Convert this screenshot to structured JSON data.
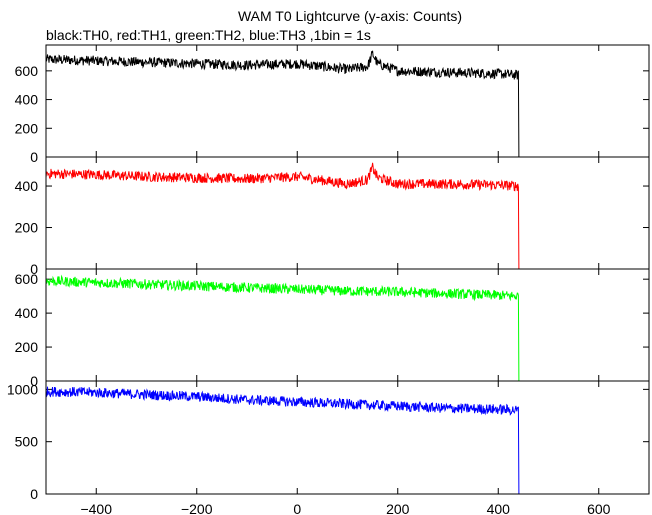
{
  "title": "WAM T0 Lightcurve (y-axis: Counts)",
  "subtitle": "black:TH0, red:TH1, green:TH2, blue:TH3 ,1bin = 1s",
  "chart_data": [
    {
      "type": "line",
      "name": "TH0",
      "color": "#000000",
      "xlim": [
        -500,
        700
      ],
      "ylim": [
        0,
        780
      ],
      "yticks": [
        0,
        200,
        400,
        600
      ],
      "show_x_ticklabels": false,
      "series": [
        {
          "x": [
            -500,
            -400,
            -300,
            -200,
            -100,
            0,
            100,
            140,
            150,
            160,
            200,
            300,
            400,
            440,
            441,
            700
          ],
          "values": [
            680,
            670,
            660,
            650,
            640,
            650,
            610,
            630,
            720,
            650,
            600,
            590,
            580,
            570,
            0,
            0
          ]
        }
      ]
    },
    {
      "type": "line",
      "name": "TH1",
      "color": "#ff0000",
      "xlim": [
        -500,
        700
      ],
      "ylim": [
        0,
        540
      ],
      "yticks": [
        0,
        200,
        400
      ],
      "show_x_ticklabels": false,
      "series": [
        {
          "x": [
            -500,
            -400,
            -300,
            -200,
            -100,
            0,
            100,
            140,
            150,
            160,
            200,
            300,
            400,
            440,
            441,
            700
          ],
          "values": [
            460,
            455,
            445,
            440,
            435,
            445,
            410,
            430,
            490,
            440,
            410,
            410,
            405,
            400,
            0,
            0
          ]
        }
      ]
    },
    {
      "type": "line",
      "name": "TH2",
      "color": "#00ff00",
      "xlim": [
        -500,
        700
      ],
      "ylim": [
        0,
        660
      ],
      "yticks": [
        0,
        200,
        400,
        600
      ],
      "show_x_ticklabels": false,
      "series": [
        {
          "x": [
            -500,
            -400,
            -300,
            -200,
            -100,
            0,
            100,
            200,
            300,
            400,
            440,
            441,
            700
          ],
          "values": [
            590,
            580,
            570,
            560,
            550,
            540,
            530,
            525,
            515,
            505,
            500,
            0,
            0
          ]
        }
      ]
    },
    {
      "type": "line",
      "name": "TH3",
      "color": "#0000ff",
      "xlim": [
        -500,
        700
      ],
      "ylim": [
        0,
        1080
      ],
      "yticks": [
        0,
        500,
        1000
      ],
      "xticks": [
        -400,
        -200,
        0,
        200,
        400,
        600
      ],
      "show_x_ticklabels": true,
      "series": [
        {
          "x": [
            -500,
            -400,
            -300,
            -200,
            -100,
            0,
            100,
            200,
            300,
            400,
            440,
            441,
            700
          ],
          "values": [
            980,
            970,
            950,
            930,
            900,
            880,
            860,
            840,
            820,
            810,
            800,
            0,
            0
          ]
        }
      ]
    }
  ]
}
